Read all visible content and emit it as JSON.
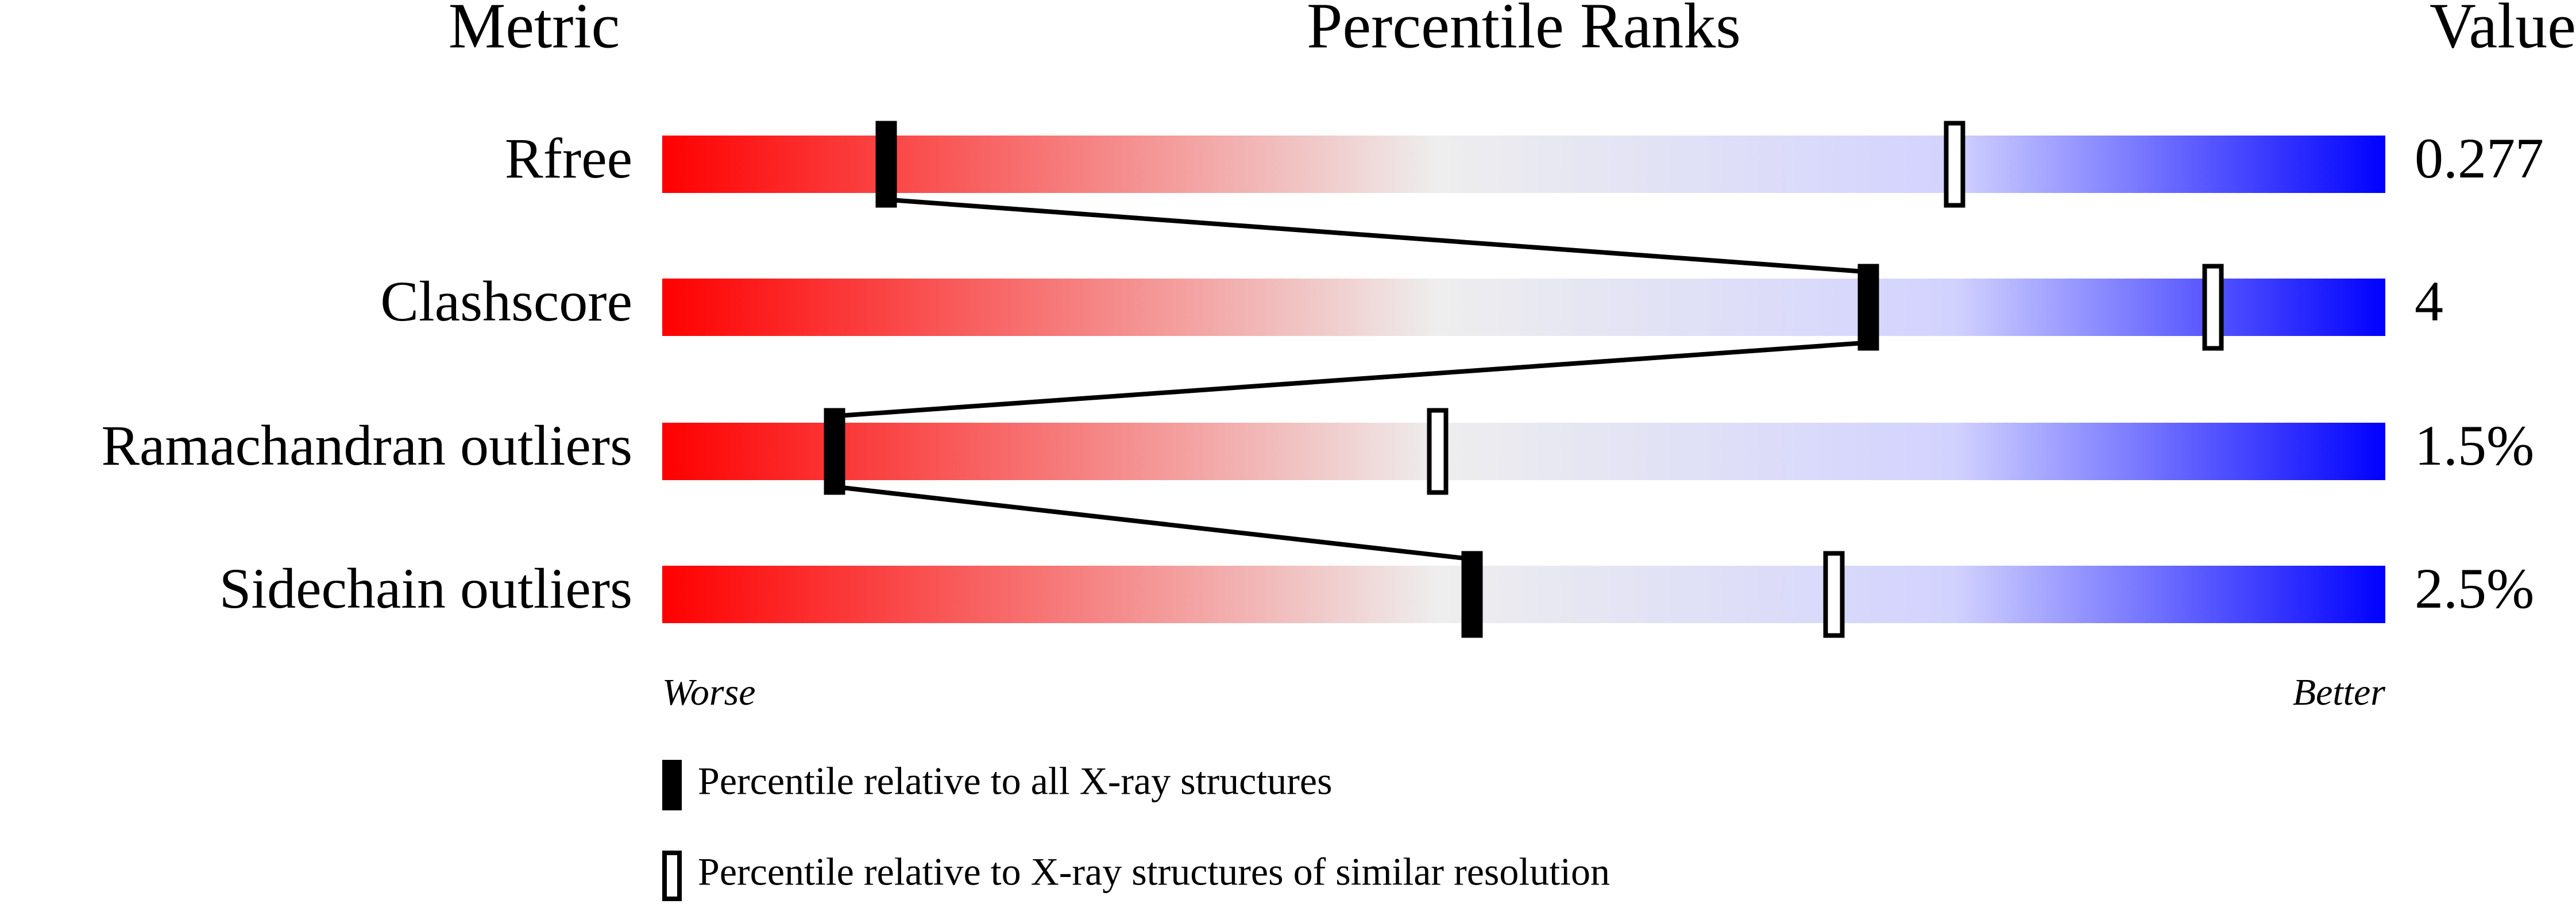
{
  "chart_data": {
    "type": "percentile-slider",
    "headers": [
      "Metric",
      "Percentile Ranks",
      "Value"
    ],
    "categories": [
      "Rfree",
      "Clashscore",
      "Ramachandran outliers",
      "Sidechain outliers"
    ],
    "metric_values": [
      "0.277",
      "4",
      "1.5%",
      "2.5%"
    ],
    "xlim": [
      0,
      100
    ],
    "axis_labels": [
      "Worse",
      "Better"
    ],
    "series": [
      {
        "name": "Percentile relative to all X-ray structures",
        "color": "#000000",
        "values": [
          13,
          70,
          10,
          47
        ]
      },
      {
        "name": "Percentile relative to X-ray structures of similar resolution",
        "color": "#ffffff",
        "values": [
          75,
          90,
          45,
          68
        ]
      }
    ]
  }
}
